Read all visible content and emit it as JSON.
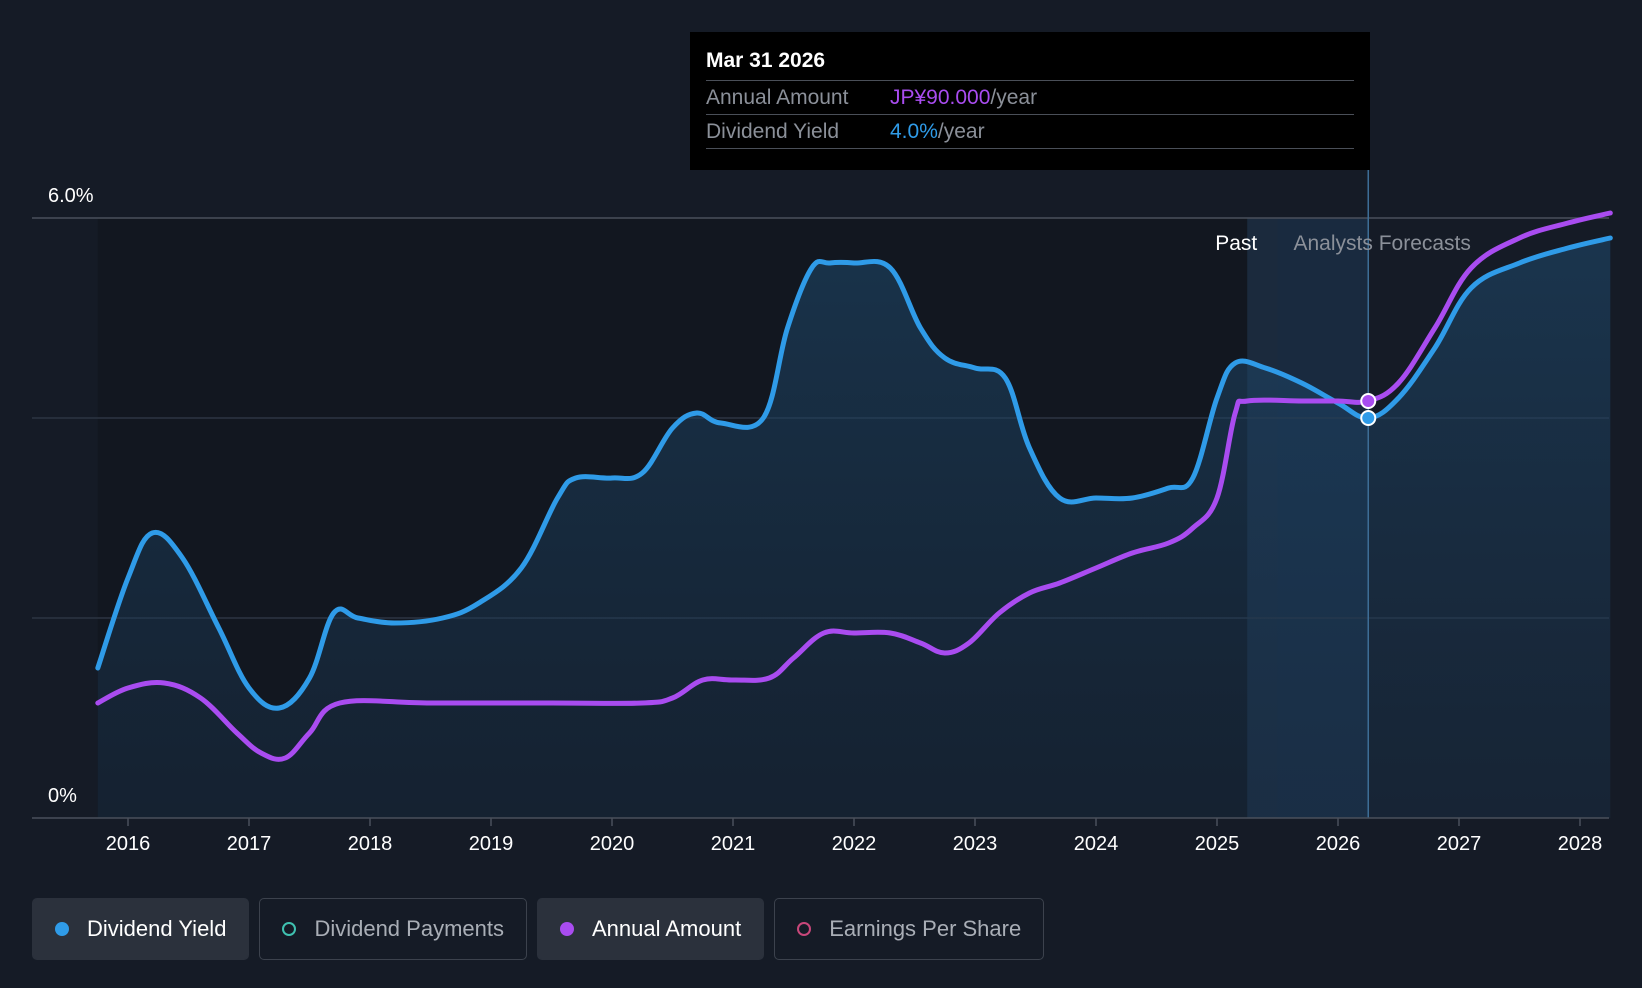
{
  "tooltip": {
    "date": "Mar 31 2026",
    "rows": [
      {
        "label": "Annual Amount",
        "value": "JP¥90.000",
        "unit": "/year"
      },
      {
        "label": "Dividend Yield",
        "value": "4.0%",
        "unit": "/year"
      }
    ]
  },
  "regions": {
    "past": "Past",
    "forecast": "Analysts Forecasts"
  },
  "legend": [
    {
      "label": "Dividend Yield",
      "active": true,
      "color": "#2f9be8"
    },
    {
      "label": "Dividend Payments",
      "active": false,
      "color": "#3fc1b0"
    },
    {
      "label": "Annual Amount",
      "active": true,
      "color": "#a94cf0"
    },
    {
      "label": "Earnings Per Share",
      "active": false,
      "color": "#c8477a"
    }
  ],
  "chart_data": {
    "type": "line",
    "y_tick_labels": [
      "6.0%",
      "0%"
    ],
    "ylim": [
      0,
      6.0
    ],
    "xlim": [
      2015.75,
      2028.25
    ],
    "x_ticks": [
      2016,
      2017,
      2018,
      2019,
      2020,
      2021,
      2022,
      2023,
      2024,
      2025,
      2026,
      2027,
      2028
    ],
    "grid": true,
    "legend_position": "bottom",
    "past_end": 2025.25,
    "forecast_start": 2025.5,
    "highlight_x": 2026.25,
    "series": [
      {
        "name": "Dividend Yield",
        "color": "#2f9be8",
        "x": [
          2015.75,
          2016.0,
          2016.2,
          2016.45,
          2016.75,
          2017.0,
          2017.25,
          2017.5,
          2017.7,
          2017.9,
          2018.2,
          2018.6,
          2018.9,
          2019.25,
          2019.55,
          2019.7,
          2020.0,
          2020.25,
          2020.5,
          2020.7,
          2020.9,
          2021.25,
          2021.45,
          2021.65,
          2021.8,
          2022.0,
          2022.3,
          2022.55,
          2022.75,
          2023.0,
          2023.25,
          2023.45,
          2023.7,
          2024.0,
          2024.3,
          2024.6,
          2024.8,
          2025.0,
          2025.15,
          2025.4,
          2025.7,
          2026.0,
          2026.25,
          2026.5,
          2026.8,
          2027.1,
          2027.5,
          2027.9,
          2028.25
        ],
        "y": [
          1.5,
          2.4,
          2.85,
          2.6,
          1.9,
          1.3,
          1.1,
          1.4,
          2.05,
          2.0,
          1.95,
          2.0,
          2.15,
          2.5,
          3.2,
          3.4,
          3.4,
          3.45,
          3.9,
          4.05,
          3.95,
          4.0,
          4.9,
          5.5,
          5.55,
          5.55,
          5.5,
          4.9,
          4.6,
          4.5,
          4.4,
          3.7,
          3.2,
          3.2,
          3.2,
          3.3,
          3.4,
          4.2,
          4.55,
          4.5,
          4.35,
          4.15,
          4.0,
          4.2,
          4.7,
          5.3,
          5.55,
          5.7,
          5.8
        ]
      },
      {
        "name": "Annual Amount",
        "color": "#a94cf0",
        "x": [
          2015.75,
          2016.0,
          2016.3,
          2016.6,
          2016.9,
          2017.1,
          2017.3,
          2017.5,
          2017.75,
          2018.5,
          2019.5,
          2020.25,
          2020.5,
          2020.75,
          2021.0,
          2021.3,
          2021.5,
          2021.75,
          2022.0,
          2022.3,
          2022.55,
          2022.75,
          2022.95,
          2023.2,
          2023.45,
          2023.7,
          2024.0,
          2024.3,
          2024.6,
          2024.8,
          2025.0,
          2025.15,
          2025.25,
          2025.7,
          2026.0,
          2026.25,
          2026.5,
          2026.8,
          2027.1,
          2027.5,
          2027.9,
          2028.25
        ],
        "y": [
          1.15,
          1.3,
          1.35,
          1.2,
          0.85,
          0.65,
          0.6,
          0.85,
          1.15,
          1.15,
          1.15,
          1.15,
          1.2,
          1.38,
          1.38,
          1.4,
          1.6,
          1.85,
          1.85,
          1.85,
          1.75,
          1.65,
          1.75,
          2.05,
          2.25,
          2.35,
          2.5,
          2.65,
          2.75,
          2.9,
          3.2,
          4.05,
          4.17,
          4.17,
          4.17,
          4.17,
          4.35,
          4.9,
          5.5,
          5.8,
          5.95,
          6.05
        ]
      }
    ]
  }
}
